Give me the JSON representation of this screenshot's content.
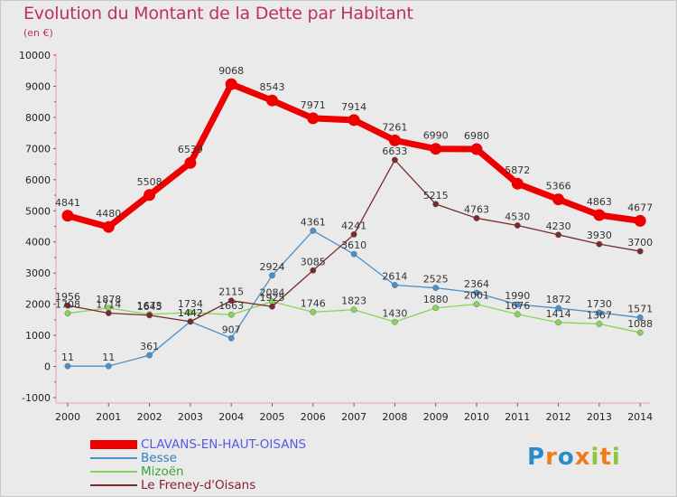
{
  "header": {
    "title": "Evolution du Montant de la Dette par Habitant",
    "subtitle": "(en €)"
  },
  "logo": {
    "letters": [
      "P",
      "r",
      "o",
      "x",
      "i",
      "t",
      "i"
    ],
    "colors": [
      "#2e8bc9",
      "#f07d1a",
      "#2e8bc9",
      "#f07d1a",
      "#8cc63f",
      "#f07d1a",
      "#8cc63f"
    ]
  },
  "chart_data": {
    "type": "line",
    "x": [
      "2000",
      "2001",
      "2002",
      "2003",
      "2004",
      "2005",
      "2006",
      "2007",
      "2008",
      "2009",
      "2010",
      "2011",
      "2012",
      "2013",
      "2014"
    ],
    "ylim": [
      -1000,
      10000
    ],
    "yticks": [
      "-1000",
      "0",
      "1000",
      "2000",
      "3000",
      "4000",
      "5000",
      "6000",
      "7000",
      "8000",
      "9000",
      "10000"
    ],
    "grid": false,
    "legend_position": "bottom-left",
    "series": [
      {
        "name": "CLAVANS-EN-HAUT-OISANS",
        "color": "#ee0000",
        "values": [
          4841,
          4480,
          5508,
          6539,
          9068,
          8543,
          7971,
          7914,
          7261,
          6990,
          6980,
          5872,
          5366,
          4863,
          4677
        ],
        "labels": [
          "4841",
          "4480",
          "5508",
          "6539",
          "9068",
          "8543",
          "7971",
          "7914",
          "7261",
          "6990",
          "6980",
          "5872",
          "5366",
          "4863",
          "4677"
        ]
      },
      {
        "name": "Besse",
        "color": "#4a90c8",
        "values": [
          11,
          11,
          361,
          1442,
          907,
          2924,
          4361,
          3610,
          2614,
          2525,
          2364,
          1990,
          1872,
          1730,
          1571
        ],
        "labels": [
          "11",
          "11",
          "361",
          "1442",
          "907",
          "2924",
          "4361",
          "3610",
          "2614",
          "2525",
          "2364",
          "1990",
          "1872",
          "1730",
          "1571"
        ]
      },
      {
        "name": "Mizoën",
        "color": "#88d45a",
        "values": [
          1708,
          1878,
          1673,
          1734,
          1663,
          2084,
          1746,
          1823,
          1430,
          1880,
          2001,
          1676,
          1414,
          1367,
          1088
        ],
        "labels": [
          "1708",
          "1878",
          "1673",
          "1734",
          "1663",
          "2084",
          "1746",
          "1823",
          "1430",
          "1880",
          "2001",
          "1676",
          "1414",
          "1367",
          "1088"
        ]
      },
      {
        "name": "Le Freney-d'Oisans",
        "color": "#7a2a2a",
        "values": [
          1956,
          1714,
          1645,
          1442,
          2115,
          1925,
          3085,
          4241,
          6633,
          5215,
          4763,
          4530,
          4230,
          3930,
          3700
        ],
        "labels": [
          "1956",
          "1714",
          "1645",
          "1442",
          "2115",
          "1925",
          "3085",
          "4241",
          "6633",
          "5215",
          "4763",
          "4530",
          "4230",
          "3930",
          "3700"
        ]
      }
    ]
  }
}
